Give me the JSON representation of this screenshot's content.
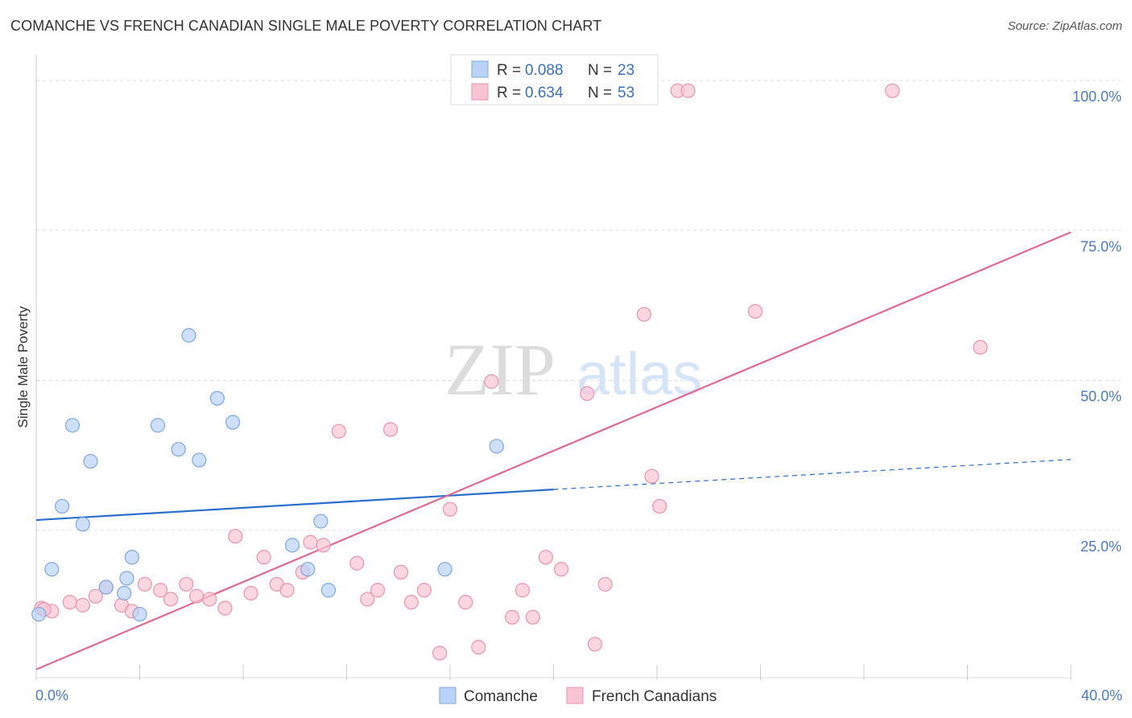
{
  "title": "COMANCHE VS FRENCH CANADIAN SINGLE MALE POVERTY CORRELATION CHART",
  "source": "Source: ZipAtlas.com",
  "watermark": {
    "zip": "ZIP",
    "atlas": "atlas"
  },
  "colors": {
    "comanche_fill": "#b8d3f5",
    "comanche_stroke": "#7fa8df",
    "comanche_line": "#2a6fcc",
    "french_fill": "#f8c4d3",
    "french_stroke": "#e994af",
    "french_line": "#e06a93",
    "tick_text": "#4a7cc9",
    "grid": "#dddddd"
  },
  "legend": {
    "rows": [
      {
        "r_label": "R =",
        "r_value": "0.088",
        "n_label": "N =",
        "n_value": "23"
      },
      {
        "r_label": "R =",
        "r_value": "0.634",
        "n_label": "N =",
        "n_value": "53"
      }
    ]
  },
  "bottom_legend": [
    "Comanche",
    "French Canadians"
  ],
  "chart_data": {
    "type": "scatter",
    "title": "COMANCHE VS FRENCH CANADIAN SINGLE MALE POVERTY CORRELATION CHART",
    "xlabel": "",
    "ylabel": "Single Male Poverty",
    "xlim": [
      0,
      40
    ],
    "ylim": [
      0,
      100
    ],
    "x_tick_labels": [
      "0.0%",
      "40.0%"
    ],
    "y_ticks": [
      25,
      50,
      75,
      100
    ],
    "y_tick_labels": [
      "25.0%",
      "50.0%",
      "75.0%",
      "100.0%"
    ],
    "grid": true,
    "legend_position": "top-center",
    "series": [
      {
        "name": "Comanche",
        "r": 0.088,
        "n": 23,
        "points": [
          [
            0.1,
            11.0
          ],
          [
            0.6,
            18.5
          ],
          [
            1.0,
            29.0
          ],
          [
            1.4,
            42.5
          ],
          [
            1.8,
            26.0
          ],
          [
            2.1,
            36.5
          ],
          [
            2.7,
            15.5
          ],
          [
            3.4,
            14.5
          ],
          [
            3.5,
            17.0
          ],
          [
            3.7,
            20.5
          ],
          [
            4.0,
            11.0
          ],
          [
            4.7,
            42.5
          ],
          [
            5.5,
            38.5
          ],
          [
            5.9,
            57.5
          ],
          [
            6.3,
            36.7
          ],
          [
            7.0,
            47.0
          ],
          [
            7.6,
            43.0
          ],
          [
            9.9,
            22.5
          ],
          [
            10.5,
            18.5
          ],
          [
            11.0,
            26.5
          ],
          [
            11.3,
            15.0
          ],
          [
            15.8,
            18.5
          ],
          [
            17.8,
            39.0
          ]
        ],
        "trend": {
          "x_start": 0,
          "x_end": 20,
          "y_start": 26.7,
          "y_end": 31.8,
          "dash_x_end": 40,
          "dash_y_end": 36.8
        }
      },
      {
        "name": "French Canadians",
        "r": 0.634,
        "n": 53,
        "points": [
          [
            0.2,
            12.0
          ],
          [
            0.6,
            11.5
          ],
          [
            1.3,
            13.0
          ],
          [
            1.8,
            12.5
          ],
          [
            2.3,
            14.0
          ],
          [
            2.7,
            15.5
          ],
          [
            3.3,
            12.5
          ],
          [
            3.7,
            11.5
          ],
          [
            4.2,
            16.0
          ],
          [
            4.8,
            15.0
          ],
          [
            5.2,
            13.5
          ],
          [
            5.8,
            16.0
          ],
          [
            6.2,
            14.0
          ],
          [
            6.7,
            13.5
          ],
          [
            7.3,
            12.0
          ],
          [
            7.7,
            24.0
          ],
          [
            8.3,
            14.5
          ],
          [
            8.8,
            20.5
          ],
          [
            9.3,
            16.0
          ],
          [
            9.7,
            15.0
          ],
          [
            10.3,
            18.0
          ],
          [
            10.6,
            23.0
          ],
          [
            11.1,
            22.5
          ],
          [
            11.7,
            41.5
          ],
          [
            12.4,
            19.5
          ],
          [
            12.8,
            13.5
          ],
          [
            13.2,
            15.0
          ],
          [
            13.7,
            41.8
          ],
          [
            14.1,
            18.0
          ],
          [
            14.5,
            13.0
          ],
          [
            15.0,
            15.0
          ],
          [
            15.6,
            4.5
          ],
          [
            16.0,
            28.5
          ],
          [
            16.6,
            13.0
          ],
          [
            17.1,
            5.5
          ],
          [
            17.6,
            49.8
          ],
          [
            18.4,
            10.5
          ],
          [
            18.8,
            15.0
          ],
          [
            19.2,
            10.5
          ],
          [
            19.7,
            20.5
          ],
          [
            20.3,
            18.5
          ],
          [
            21.3,
            47.8
          ],
          [
            21.6,
            6.0
          ],
          [
            22.0,
            16.0
          ],
          [
            23.5,
            61.0
          ],
          [
            23.8,
            34.0
          ],
          [
            24.1,
            29.0
          ],
          [
            24.8,
            98.3
          ],
          [
            25.2,
            98.3
          ],
          [
            27.8,
            61.5
          ],
          [
            33.1,
            98.3
          ],
          [
            36.5,
            55.5
          ],
          [
            0.3,
            11.8
          ]
        ],
        "trend": {
          "x_start": 0,
          "x_end": 40,
          "y_start": 1.8,
          "y_end": 74.7
        }
      }
    ]
  }
}
